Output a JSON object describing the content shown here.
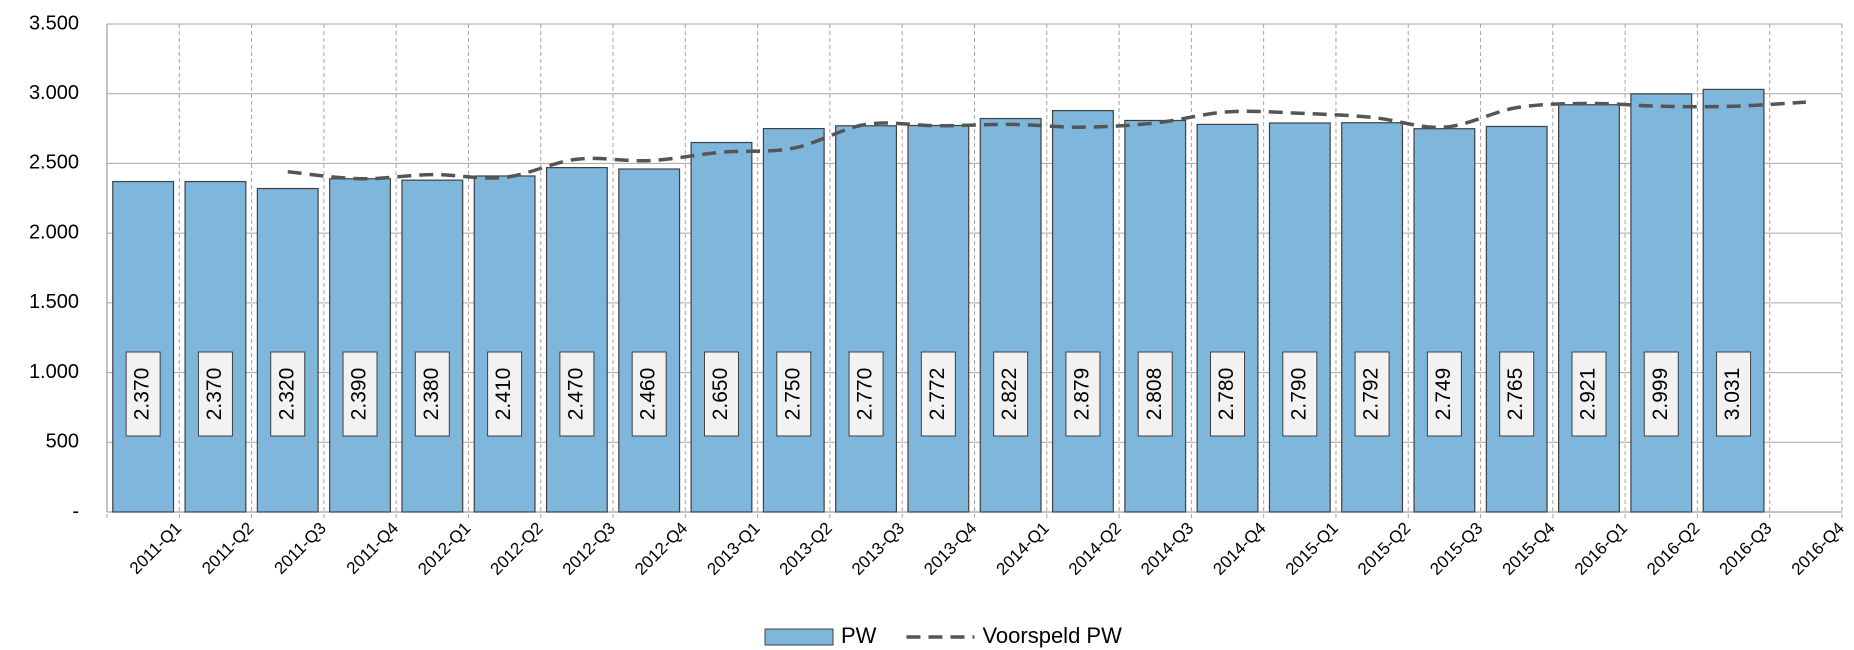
{
  "chart_data": {
    "type": "bar",
    "categories": [
      "2011-Q1",
      "2011-Q2",
      "2011-Q3",
      "2011-Q4",
      "2012-Q1",
      "2012-Q2",
      "2012-Q3",
      "2012-Q4",
      "2013-Q1",
      "2013-Q2",
      "2013-Q3",
      "2013-Q4",
      "2014-Q1",
      "2014-Q2",
      "2014-Q3",
      "2014-Q4",
      "2015-Q1",
      "2015-Q2",
      "2015-Q3",
      "2015-Q4",
      "2016-Q1",
      "2016-Q2",
      "2016-Q3",
      "2016-Q4"
    ],
    "series": [
      {
        "name": "PW",
        "type": "bar",
        "color": "#7eb6dc",
        "values": [
          2370,
          2370,
          2320,
          2390,
          2380,
          2410,
          2470,
          2460,
          2650,
          2750,
          2770,
          2772,
          2822,
          2879,
          2808,
          2780,
          2790,
          2792,
          2749,
          2765,
          2921,
          2999,
          3031,
          null
        ],
        "value_labels": [
          "2.370",
          "2.370",
          "2.320",
          "2.390",
          "2.380",
          "2.410",
          "2.470",
          "2.460",
          "2.650",
          "2.750",
          "2.770",
          "2.772",
          "2.822",
          "2.879",
          "2.808",
          "2.780",
          "2.790",
          "2.792",
          "2.749",
          "2.765",
          "2.921",
          "2.999",
          "3.031",
          null
        ]
      },
      {
        "name": "Voorspeld PW",
        "type": "line",
        "color": "#555555",
        "values": [
          null,
          null,
          2440,
          2390,
          2420,
          2400,
          2530,
          2520,
          2580,
          2610,
          2780,
          2770,
          2780,
          2760,
          2790,
          2870,
          2860,
          2830,
          2760,
          2900,
          2930,
          2910,
          2910,
          2940
        ]
      }
    ],
    "ylim": [
      0,
      3500
    ],
    "yticks": [
      {
        "value": 0,
        "label": "-"
      },
      500,
      {
        "value": 1000,
        "label": "1.000"
      },
      {
        "value": 1500,
        "label": "1.500"
      },
      {
        "value": 2000,
        "label": "2.000"
      },
      {
        "value": 2500,
        "label": "2.500"
      },
      {
        "value": 3000,
        "label": "3.000"
      },
      {
        "value": 3500,
        "label": "3.500"
      }
    ],
    "grid": true
  }
}
